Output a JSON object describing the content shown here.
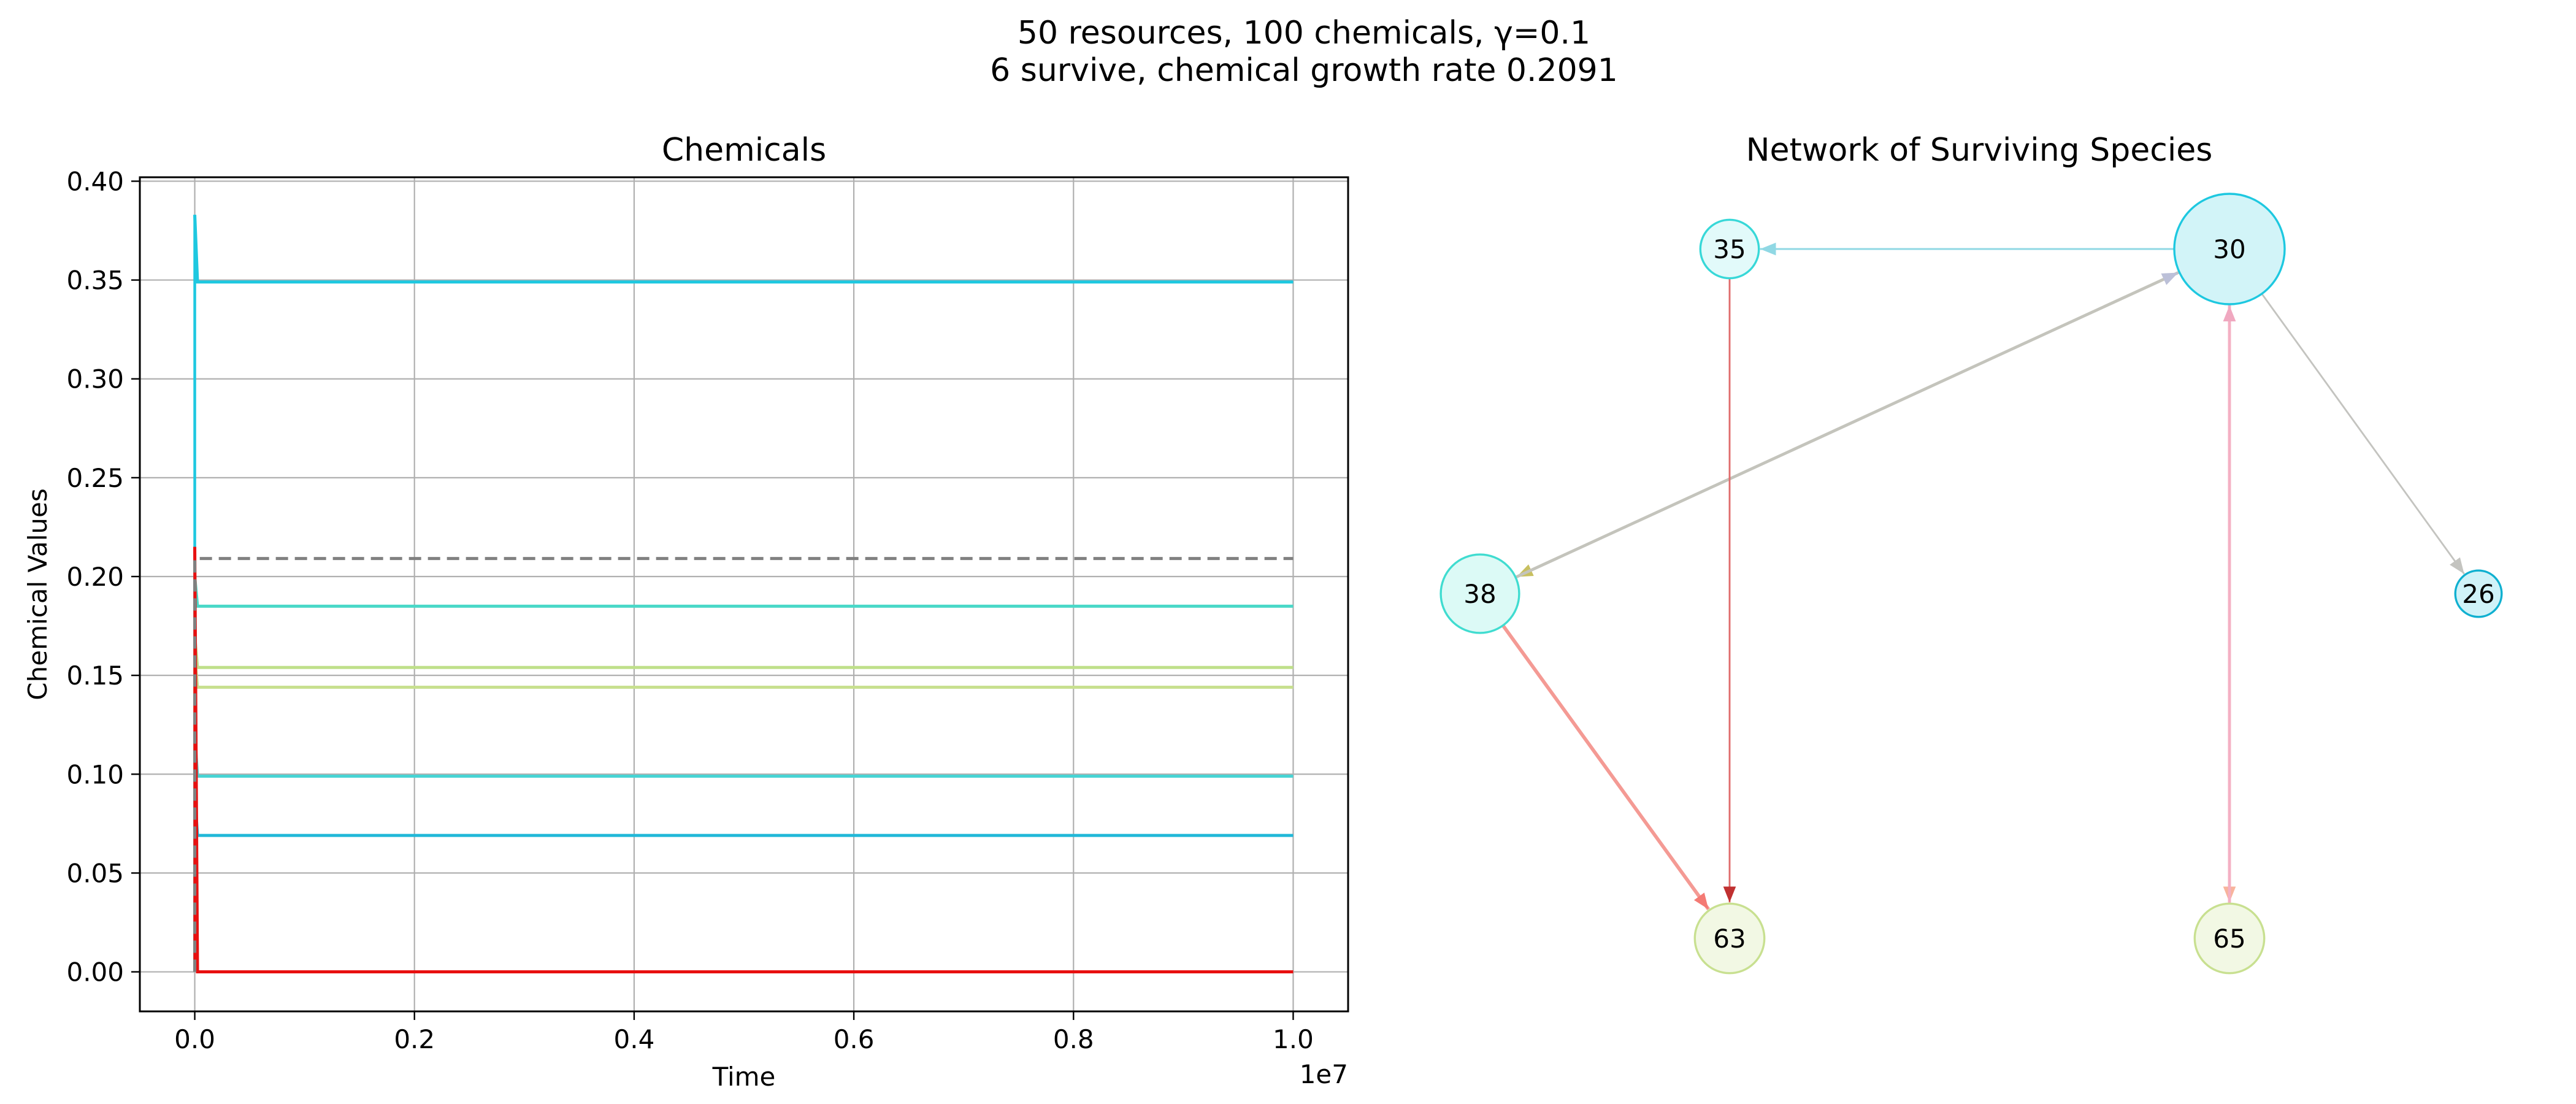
{
  "figure": {
    "suptitle_line1": "50 resources, 100 chemicals, γ=0.1",
    "suptitle_line2": "6 survive, chemical growth rate 0.2091"
  },
  "chart_data": [
    {
      "type": "line",
      "title": "Chemicals",
      "xlabel": "Time",
      "ylabel": "Chemical Values",
      "x_offset_text": "1e7",
      "xlim": [
        -0.05,
        1.05
      ],
      "ylim": [
        -0.02,
        0.402
      ],
      "x_ticks": [
        0.0,
        0.2,
        0.4,
        0.6,
        0.8,
        1.0
      ],
      "x_tick_labels": [
        "0.0",
        "0.2",
        "0.4",
        "0.6",
        "0.8",
        "1.0"
      ],
      "y_ticks": [
        0.0,
        0.05,
        0.1,
        0.15,
        0.2,
        0.25,
        0.3,
        0.35,
        0.4
      ],
      "y_tick_labels": [
        "0.00",
        "0.05",
        "0.10",
        "0.15",
        "0.20",
        "0.25",
        "0.30",
        "0.35",
        "0.40"
      ],
      "grid": true,
      "series": [
        {
          "color": "#1ec8e0",
          "spike": 0.383,
          "x": [
            0.0,
            0.0025,
            1.0
          ],
          "values": [
            0.383,
            0.349,
            0.349
          ]
        },
        {
          "color": "#4ad8c8",
          "spike": 0.2,
          "x": [
            0.0,
            0.0025,
            1.0
          ],
          "values": [
            0.2,
            0.185,
            0.185
          ]
        },
        {
          "color": "#bfe08a",
          "spike": 0.17,
          "x": [
            0.0,
            0.0025,
            1.0
          ],
          "values": [
            0.17,
            0.154,
            0.154
          ]
        },
        {
          "color": "#c8e090",
          "spike": 0.16,
          "x": [
            0.0,
            0.0025,
            1.0
          ],
          "values": [
            0.16,
            0.144,
            0.144
          ]
        },
        {
          "color": "#48d4d4",
          "spike": 0.12,
          "x": [
            0.0,
            0.0025,
            1.0
          ],
          "values": [
            0.12,
            0.099,
            0.099
          ]
        },
        {
          "color": "#20b8d8",
          "spike": 0.09,
          "x": [
            0.0,
            0.0025,
            1.0
          ],
          "values": [
            0.09,
            0.069,
            0.069
          ]
        },
        {
          "color": "#e81010",
          "spike": 0.215,
          "x": [
            0.0,
            0.0025,
            1.0
          ],
          "values": [
            0.215,
            0.0,
            0.0
          ]
        },
        {
          "color": "#808080",
          "dashed": true,
          "x": [
            0.0,
            0.0,
            1.0
          ],
          "values": [
            0.0,
            0.2091,
            0.2091
          ]
        }
      ]
    },
    {
      "type": "network",
      "title": "Network of Surviving Species",
      "nodes": [
        {
          "id": "30",
          "label": "30",
          "fill": "#d2f4f8",
          "stroke": "#1ec8e0",
          "size": 1.0,
          "col": 2,
          "row": 0
        },
        {
          "id": "35",
          "label": "35",
          "fill": "#e2fafa",
          "stroke": "#38d8d8",
          "size": 0.53,
          "col": 0,
          "row": 0
        },
        {
          "id": "38",
          "label": "38",
          "fill": "#dcfaf6",
          "stroke": "#40dcd0",
          "size": 0.71,
          "col": -1,
          "row": 1
        },
        {
          "id": "26",
          "label": "26",
          "fill": "#cff2f8",
          "stroke": "#10b0d0",
          "size": 0.42,
          "col": 3,
          "row": 1
        },
        {
          "id": "63",
          "label": "63",
          "fill": "#f2f8e4",
          "stroke": "#c8e090",
          "size": 0.63,
          "col": 0,
          "row": 2
        },
        {
          "id": "65",
          "label": "65",
          "fill": "#f2f8e4",
          "stroke": "#c8e090",
          "size": 0.63,
          "col": 2,
          "row": 2
        }
      ],
      "edges": [
        {
          "source": "30",
          "target": "35",
          "color": "#90d8e4",
          "width": 1.6
        },
        {
          "source": "30",
          "target": "26",
          "color": "#c4c4c0",
          "width": 1.6
        },
        {
          "source": "30",
          "target": "38",
          "color": "#c4c4bc",
          "width": 2.6,
          "head_color": "#c8c060"
        },
        {
          "source": "38",
          "target": "30",
          "color": "#c4c4bc",
          "width": 2.6,
          "head_color": "#bcc0d8"
        },
        {
          "source": "35",
          "target": "63",
          "color": "#e06c6c",
          "width": 1.6,
          "head_color": "#c03030"
        },
        {
          "source": "38",
          "target": "63",
          "color": "#f49a94",
          "width": 3.2,
          "head_color": "#f47a74"
        },
        {
          "source": "30",
          "target": "65",
          "color": "#f4b0c4",
          "width": 2.6,
          "head_color": "#f8b49c"
        },
        {
          "source": "65",
          "target": "30",
          "color": "#f4b0c4",
          "width": 2.6,
          "head_color": "#f0a8c0"
        }
      ]
    }
  ]
}
